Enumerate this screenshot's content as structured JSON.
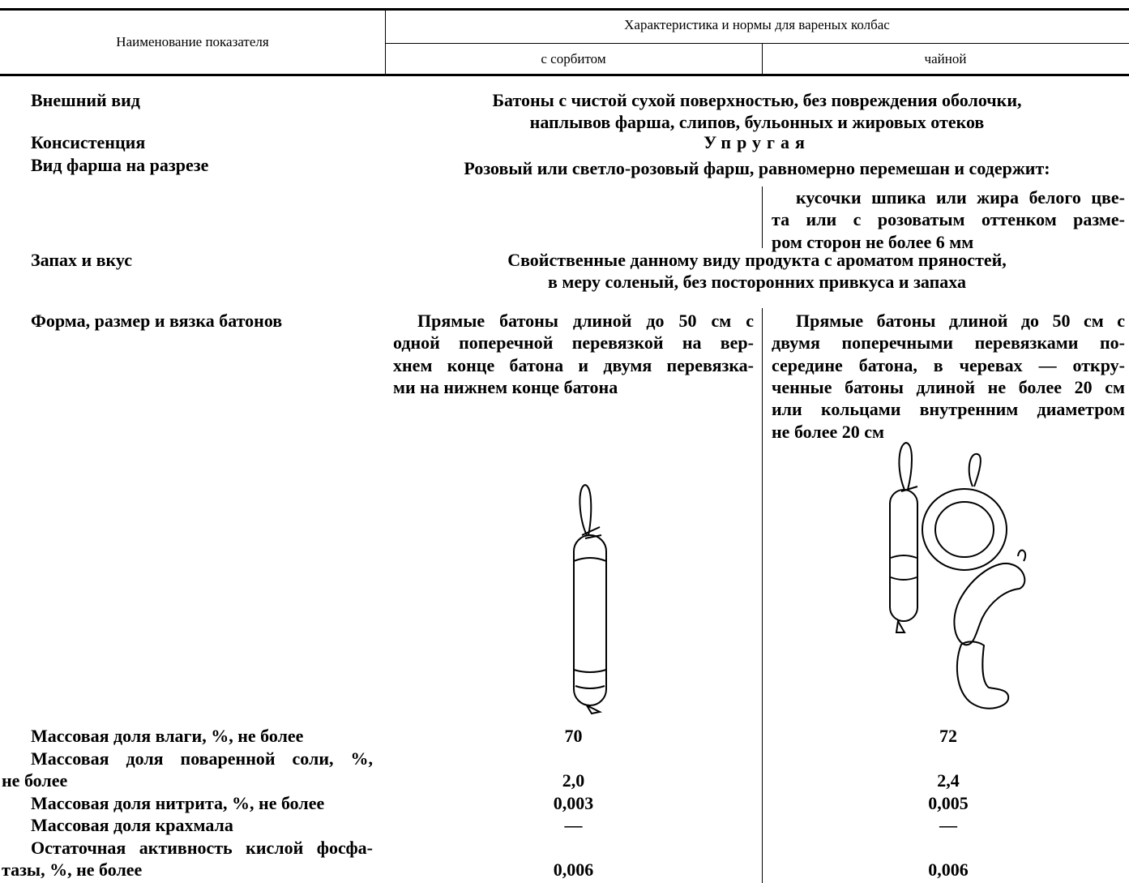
{
  "header": {
    "indicator": "Наименование показателя",
    "group": "Характеристика и нормы для вареных колбас",
    "columns": [
      "с сорбитом",
      "чайной"
    ]
  },
  "rows": [
    {
      "name": [
        "Внешний вид"
      ],
      "common": [
        "Батоны с чистой сухой поверхностью, без повреждения оболочки,",
        "наплывов фарша, слипов, бульонных и жировых отеков"
      ]
    },
    {
      "name": [
        "Консистенция"
      ],
      "common": [
        "Упругая"
      ]
    },
    {
      "name": [
        "Вид фарша на разрезе"
      ],
      "common": [
        "Розовый или светло-розовый фарш, равномерно перемешан и содержит:"
      ],
      "tea": [
        "кусочки шпика или жира белого цве-",
        "та или с розоватым оттенком разме-",
        "ром сторон не более 6 мм"
      ]
    },
    {
      "name": [
        "Запах и вкус"
      ],
      "common": [
        "Свойственные данному виду продукта с ароматом пряностей,",
        "в меру соленый, без посторонних привкуса и запаха"
      ]
    },
    {
      "name": [
        "Форма, размер и вязка батонов"
      ],
      "sorbitol": [
        "Прямые батоны длиной до 50 см с",
        "одной поперечной перевязкой на вер-",
        "хнем конце батона и двумя перевязка-",
        "ми на нижнем конце батона"
      ],
      "tea": [
        "Прямые батоны длиной до 50 см с",
        "двумя поперечными перевязками по-",
        "середине батона, в черевах — откру-",
        "ченные батоны длиной не более 20 см",
        "или кольцами внутренним диаметром",
        "не более 20 см"
      ]
    },
    {
      "name": [
        "Массовая доля влаги, %, не более"
      ],
      "sorbitol": "70",
      "tea": "72"
    },
    {
      "name": [
        "Массовая доля поваренной соли, %,",
        "не более"
      ],
      "sorbitol": "2,0",
      "tea": "2,4"
    },
    {
      "name": [
        "Массовая доля нитрита, %, не более"
      ],
      "sorbitol": "0,003",
      "tea": "0,005"
    },
    {
      "name": [
        "Массовая доля крахмала"
      ],
      "sorbitol": "—",
      "tea": "—"
    },
    {
      "name": [
        "Остаточная активность кислой фосфа-",
        "тазы, %, не более"
      ],
      "sorbitol": "0,006",
      "tea": "0,006"
    }
  ]
}
